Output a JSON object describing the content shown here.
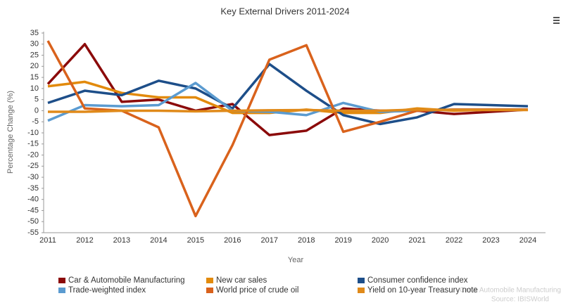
{
  "chart_data": {
    "type": "line",
    "title": "Key External Drivers 2011-2024",
    "x_label": "Year",
    "y_label": "Percentage Change (%)",
    "categories": [
      "2011",
      "2012",
      "2013",
      "2014",
      "2015",
      "2016",
      "2017",
      "2018",
      "2019",
      "2020",
      "2021",
      "2022",
      "2023",
      "2024"
    ],
    "series": [
      {
        "name": "Car & Automobile Manufacturing",
        "color": "#8b0a0a",
        "values": [
          12,
          30,
          4,
          5,
          0,
          3,
          -11,
          -9,
          1,
          0,
          0,
          -1.5,
          -0.5,
          0.5
        ]
      },
      {
        "name": "New car sales",
        "color": "#e28a0c",
        "values": [
          11,
          13,
          8,
          6,
          6,
          -1,
          -1,
          0.5,
          -1,
          -1,
          1,
          0,
          0.5,
          0.5
        ]
      },
      {
        "name": "Consumer confidence index",
        "color": "#1d4e89",
        "values": [
          3.5,
          9,
          7,
          13.5,
          10,
          1,
          21,
          9,
          -2,
          -6,
          -3,
          3,
          2.5,
          2
        ]
      },
      {
        "name": "Trade-weighted index",
        "color": "#5b9bd0",
        "values": [
          -4.5,
          2.5,
          2,
          2.5,
          12.5,
          0,
          -0.5,
          -2,
          3.5,
          -0.5,
          0,
          0.5,
          0.5,
          0.5
        ]
      },
      {
        "name": "World price of crude oil",
        "color": "#d9621c",
        "values": [
          31.5,
          1,
          0,
          -7.5,
          -47.5,
          -15.5,
          23,
          29.5,
          -9.5,
          -5,
          0,
          0.5,
          0.5,
          0.5
        ]
      },
      {
        "name": "Yield on 10-year Treasury note",
        "color": "#e08a1a",
        "values": [
          -0.5,
          -0.5,
          0,
          0,
          -0.3,
          0,
          0.2,
          0.3,
          0,
          0,
          0.5,
          0.3,
          0.3,
          0.3
        ]
      }
    ],
    "ylim": [
      -55,
      35
    ],
    "yticks": [
      35,
      30,
      25,
      20,
      15,
      10,
      5,
      0,
      -5,
      -10,
      -15,
      -20,
      -25,
      -30,
      -35,
      -40,
      -45,
      -50,
      -55
    ],
    "grid": false,
    "legend": "bottom",
    "watermark": "Car & Automobile Manufacturing",
    "source": "Source: IBISWorld"
  }
}
